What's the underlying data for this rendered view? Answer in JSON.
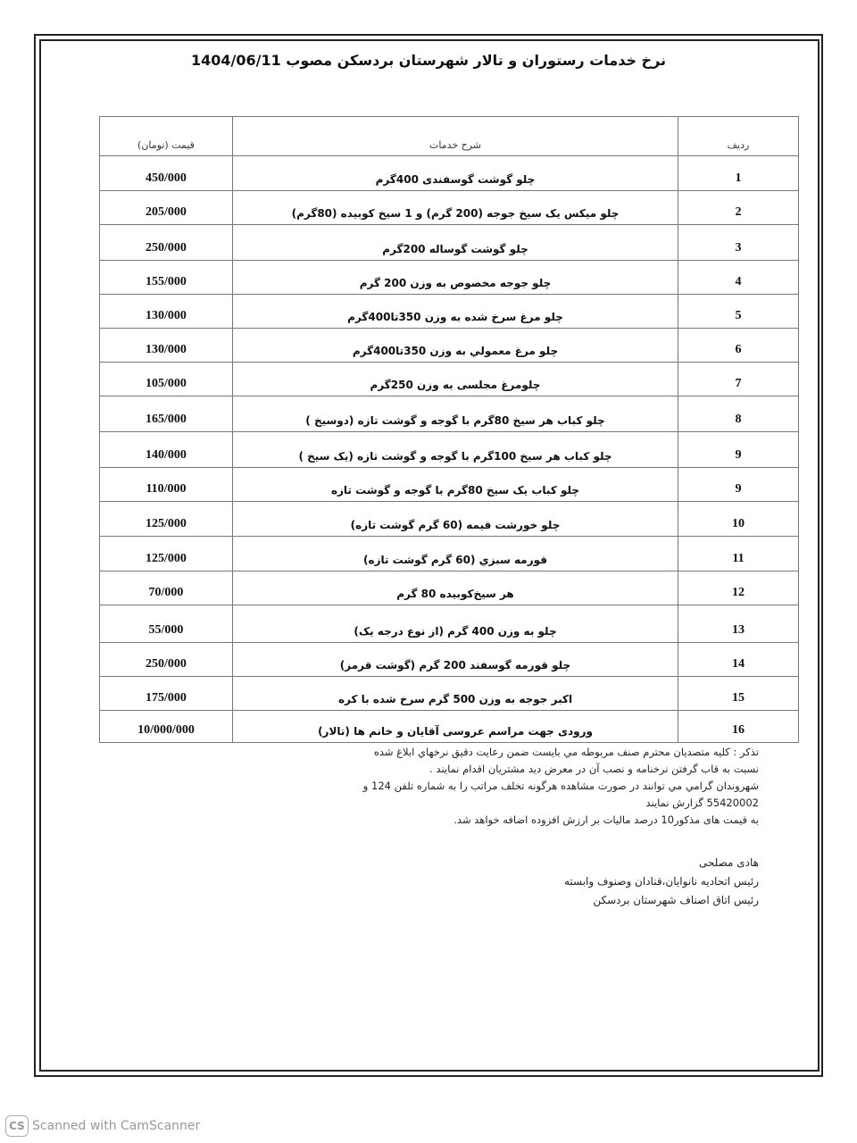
{
  "title": "نرخ خدمات رستوران و تالار شهرستان بردسکن مصوب 1404/06/11",
  "table": {
    "headers": {
      "index": "ردیف",
      "description": "شرح خدمات",
      "price": "قیمت (تومان)"
    },
    "rows": [
      {
        "index": "1",
        "description": "چلو گوشت گوسفندی 400گرم",
        "price": "450/000"
      },
      {
        "index": "2",
        "description": "چلو میکس یک سیخ جوجه (200 گرم) و 1 سیخ کوبیده (80گرم)",
        "price": "205/000"
      },
      {
        "index": "3",
        "description": "چلو گوشت گوساله 200گرم",
        "price": "250/000"
      },
      {
        "index": "4",
        "description": "چلو جوجه مخصوص به وزن 200 گرم",
        "price": "155/000"
      },
      {
        "index": "5",
        "description": "چلو مرغ سرخ شده به وزن 350تا400گرم",
        "price": "130/000"
      },
      {
        "index": "6",
        "description": "چلو مرغ معمولي به وزن 350تا400گرم",
        "price": "130/000"
      },
      {
        "index": "7",
        "description": "چلومرغ مجلسی به وزن 250گرم",
        "price": "105/000"
      },
      {
        "index": "8",
        "description": "چلو کباب  هر سیخ 80گرم با گوجه و گوشت تازه (دوسیخ )",
        "price": "165/000"
      },
      {
        "index": "9",
        "description": "چلو کباب  هر سیخ 100گرم با گوجه و گوشت تازه (یک سیخ )",
        "price": "140/000"
      },
      {
        "index": "9",
        "description": "چلو کباب  یک سیخ 80گرم با گوجه و گوشت تازه",
        "price": "110/000"
      },
      {
        "index": "10",
        "description": "چلو خورشت قیمه (60 گرم گوشت تازه)",
        "price": "125/000"
      },
      {
        "index": "11",
        "description": "قورمه سبزي (60 گرم گوشت تازه)",
        "price": "125/000"
      },
      {
        "index": "12",
        "description": "هر سیخ‌کوبیده 80 گرم",
        "price": "70/000"
      },
      {
        "index": "13",
        "description": "چلو به وزن 400 گرم (از نوع درجه یک)",
        "price": "55/000"
      },
      {
        "index": "14",
        "description": "چلو قورمه گوسفند 200 گرم (گوشت قرمز)",
        "price": "250/000"
      },
      {
        "index": "15",
        "description": "اکبر جوجه به وزن 500 گرم سرخ شده با کره",
        "price": "175/000"
      },
      {
        "index": "16",
        "description": "ورودی جهت مراسم عروسی آقایان و خانم ها (تالار)",
        "price": "10/000/000"
      }
    ]
  },
  "notes": [
    "تذکر : کلیه متصدیان محترم صنف مربوطه مي بایست ضمن رعایت دقیق نرخهاي ابلاغ شده",
    "نسبت به قاب گرفتن نرخنامه و نصب آن در معرض دید مشتریان اقدام نمایند .",
    "شهروندان گرامي مي توانند در صورت مشاهده هرگونه تخلف مراتب را به شماره تلفن 124 و",
    "55420002 گزارش نمایند",
    "به قیمت های مذکور10 درصد مالیات بر ارزش افزوده اضافه خواهد شد."
  ],
  "signature": {
    "name": "هادی مصلحی",
    "role1": "رئیس اتحادیه نانوایان،قنادان وصنوف وابسته",
    "role2": "رئیس اتاق اصناف شهرستان بردسکن"
  },
  "watermark": {
    "logo": "CS",
    "text": "Scanned with CamScanner"
  }
}
